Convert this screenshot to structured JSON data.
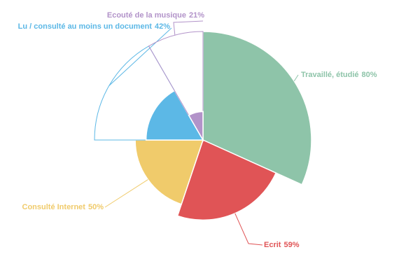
{
  "chart_data": {
    "type": "polar-pie",
    "categories": [
      "Travaillé, étudié",
      "Ecrit",
      "Consulté Internet",
      "Lu / consulté au moins un document",
      "Ecouté de la musique"
    ],
    "values": [
      80,
      59,
      50,
      42,
      21
    ],
    "value_labels": [
      "80%",
      "59%",
      "50%",
      "42%",
      "21%"
    ],
    "colors": [
      "#8ec4a9",
      "#e05456",
      "#f0cb6b",
      "#5cb8e6",
      "#b293c9"
    ]
  }
}
